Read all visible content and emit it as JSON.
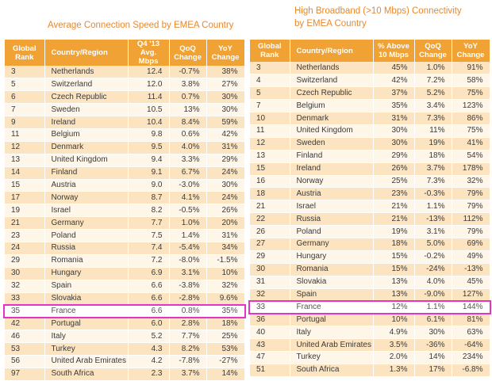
{
  "left": {
    "title_line1": "Average Connection Speed by EMEA Country",
    "title_line2": "",
    "headers": [
      "Global\nRank",
      "Country/Region",
      "Q4 '13\nAvg. Mbps",
      "QoQ\nChange",
      "YoY\nChange"
    ],
    "rows": [
      [
        "3",
        "Netherlands",
        "12.4",
        "-0.7%",
        "38%"
      ],
      [
        "5",
        "Switzerland",
        "12.0",
        "3.8%",
        "27%"
      ],
      [
        "6",
        "Czech Republic",
        "11.4",
        "0.7%",
        "30%"
      ],
      [
        "7",
        "Sweden",
        "10.5",
        "13%",
        "30%"
      ],
      [
        "9",
        "Ireland",
        "10.4",
        "8.4%",
        "59%"
      ],
      [
        "11",
        "Belgium",
        "9.8",
        "0.6%",
        "42%"
      ],
      [
        "12",
        "Denmark",
        "9.5",
        "4.0%",
        "31%"
      ],
      [
        "13",
        "United Kingdom",
        "9.4",
        "3.3%",
        "29%"
      ],
      [
        "14",
        "Finland",
        "9.1",
        "6.7%",
        "24%"
      ],
      [
        "15",
        "Austria",
        "9.0",
        "-3.0%",
        "30%"
      ],
      [
        "17",
        "Norway",
        "8.7",
        "4.1%",
        "24%"
      ],
      [
        "19",
        "Israel",
        "8.2",
        "-0.5%",
        "26%"
      ],
      [
        "21",
        "Germany",
        "7.7",
        "1.0%",
        "20%"
      ],
      [
        "23",
        "Poland",
        "7.5",
        "1.4%",
        "31%"
      ],
      [
        "24",
        "Russia",
        "7.4",
        "-5.4%",
        "34%"
      ],
      [
        "29",
        "Romania",
        "7.2",
        "-8.0%",
        "-1.5%"
      ],
      [
        "30",
        "Hungary",
        "6.9",
        "3.1%",
        "10%"
      ],
      [
        "32",
        "Spain",
        "6.6",
        "-3.8%",
        "32%"
      ],
      [
        "33",
        "Slovakia",
        "6.6",
        "-2.8%",
        "9.6%"
      ],
      [
        "35",
        "France",
        "6.6",
        "0.8%",
        "35%"
      ],
      [
        "42",
        "Portugal",
        "6.0",
        "2.8%",
        "18%"
      ],
      [
        "46",
        "Italy",
        "5.2",
        "7.7%",
        "25%"
      ],
      [
        "53",
        "Turkey",
        "4.3",
        "8.2%",
        "53%"
      ],
      [
        "56",
        "United Arab Emirates",
        "4.2",
        "-7.8%",
        "-27%"
      ],
      [
        "97",
        "South Africa",
        "2.3",
        "3.7%",
        "14%"
      ]
    ]
  },
  "right": {
    "title_line1": "High Broadband (>10 Mbps) Connectivity",
    "title_line2": "by EMEA Country",
    "headers": [
      "Global\nRank",
      "Country/Region",
      "% Above\n10 Mbps",
      "QoQ\nChange",
      "YoY\nChange"
    ],
    "rows": [
      [
        "3",
        "Netherlands",
        "45%",
        "1.0%",
        "91%"
      ],
      [
        "4",
        "Switzerland",
        "42%",
        "7.2%",
        "58%"
      ],
      [
        "5",
        "Czech Republic",
        "37%",
        "5.2%",
        "75%"
      ],
      [
        "7",
        "Belgium",
        "35%",
        "3.4%",
        "123%"
      ],
      [
        "10",
        "Denmark",
        "31%",
        "7.3%",
        "86%"
      ],
      [
        "11",
        "United Kingdom",
        "30%",
        "11%",
        "75%"
      ],
      [
        "12",
        "Sweden",
        "30%",
        "19%",
        "41%"
      ],
      [
        "13",
        "Finland",
        "29%",
        "18%",
        "54%"
      ],
      [
        "15",
        "Ireland",
        "26%",
        "3.7%",
        "178%"
      ],
      [
        "16",
        "Norway",
        "25%",
        "7.3%",
        "32%"
      ],
      [
        "18",
        "Austria",
        "23%",
        "-0.3%",
        "79%"
      ],
      [
        "21",
        "Israel",
        "21%",
        "1.1%",
        "79%"
      ],
      [
        "22",
        "Russia",
        "21%",
        "-13%",
        "112%"
      ],
      [
        "26",
        "Poland",
        "19%",
        "3.1%",
        "79%"
      ],
      [
        "27",
        "Germany",
        "18%",
        "5.0%",
        "69%"
      ],
      [
        "29",
        "Hungary",
        "15%",
        "-0.2%",
        "49%"
      ],
      [
        "30",
        "Romania",
        "15%",
        "-24%",
        "-13%"
      ],
      [
        "31",
        "Slovakia",
        "13%",
        "4.0%",
        "45%"
      ],
      [
        "32",
        "Spain",
        "13%",
        "-9.0%",
        "127%"
      ],
      [
        "33",
        "France",
        "12%",
        "1.1%",
        "144%"
      ],
      [
        "36",
        "Portugal",
        "10%",
        "6.1%",
        "81%"
      ],
      [
        "40",
        "Italy",
        "4.9%",
        "30%",
        "63%"
      ],
      [
        "43",
        "United Arab Emirates",
        "3.5%",
        "-36%",
        "-64%"
      ],
      [
        "47",
        "Turkey",
        "2.0%",
        "14%",
        "234%"
      ],
      [
        "51",
        "South Africa",
        "1.3%",
        "17%",
        "-6.8%"
      ]
    ]
  },
  "highlight_country": "France",
  "colors": {
    "header_bg": "#f0a234",
    "row_odd": "#fde4c1",
    "row_even": "#fff6ea",
    "title": "#e8882c",
    "highlight": "#e533c6"
  }
}
